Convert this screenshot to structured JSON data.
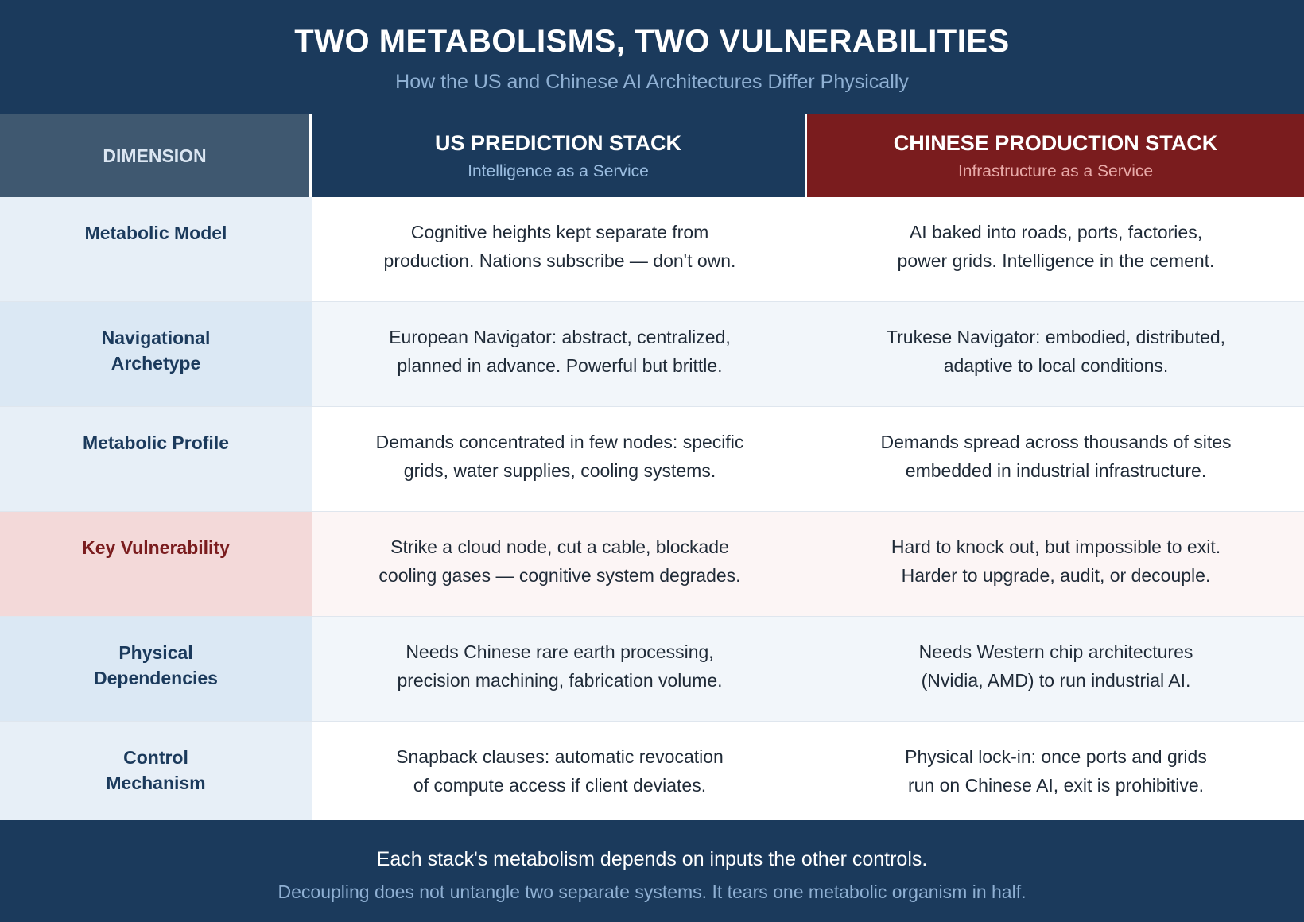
{
  "header": {
    "title": "TWO METABOLISMS, TWO VULNERABILITIES",
    "subtitle": "How the US and Chinese AI Architectures Differ Physically"
  },
  "columns": {
    "dimension": "DIMENSION",
    "us": {
      "title": "US PREDICTION STACK",
      "subtitle": "Intelligence as a Service"
    },
    "cn": {
      "title": "CHINESE PRODUCTION STACK",
      "subtitle": "Infrastructure as a Service"
    }
  },
  "rows": [
    {
      "dimension": [
        "Metabolic Model"
      ],
      "us": [
        "Cognitive heights kept separate from",
        "production. Nations subscribe — don't own."
      ],
      "cn": [
        "AI baked into roads, ports, factories,",
        "power grids. Intelligence in the cement."
      ]
    },
    {
      "dimension": [
        "Navigational",
        "Archetype"
      ],
      "us": [
        "European Navigator: abstract, centralized,",
        "planned in advance. Powerful but brittle."
      ],
      "cn": [
        "Trukese Navigator: embodied, distributed,",
        "adaptive to local conditions."
      ]
    },
    {
      "dimension": [
        "Metabolic Profile"
      ],
      "us": [
        "Demands concentrated in few nodes: specific",
        "grids, water supplies, cooling systems."
      ],
      "cn": [
        "Demands spread across thousands of sites",
        "embedded in industrial infrastructure."
      ]
    },
    {
      "dimension": [
        "Key Vulnerability"
      ],
      "us": [
        "Strike a cloud node, cut a cable, blockade",
        "cooling gases — cognitive system degrades."
      ],
      "cn": [
        "Hard to knock out, but impossible to exit.",
        "Harder to upgrade, audit, or decouple."
      ]
    },
    {
      "dimension": [
        "Physical",
        "Dependencies"
      ],
      "us": [
        "Needs Chinese rare earth processing,",
        "precision machining, fabrication volume."
      ],
      "cn": [
        "Needs Western chip architectures",
        "(Nvidia, AMD) to run industrial AI."
      ]
    },
    {
      "dimension": [
        "Control",
        "Mechanism"
      ],
      "us": [
        "Snapback clauses: automatic revocation",
        "of compute access if client deviates."
      ],
      "cn": [
        "Physical lock-in: once ports and grids",
        "run on Chinese AI, exit is prohibitive."
      ]
    }
  ],
  "footer": {
    "line1": "Each stack's metabolism depends on inputs the other controls.",
    "line2": "Decoupling does not untangle two separate systems. It tears one metabolic organism in half."
  }
}
